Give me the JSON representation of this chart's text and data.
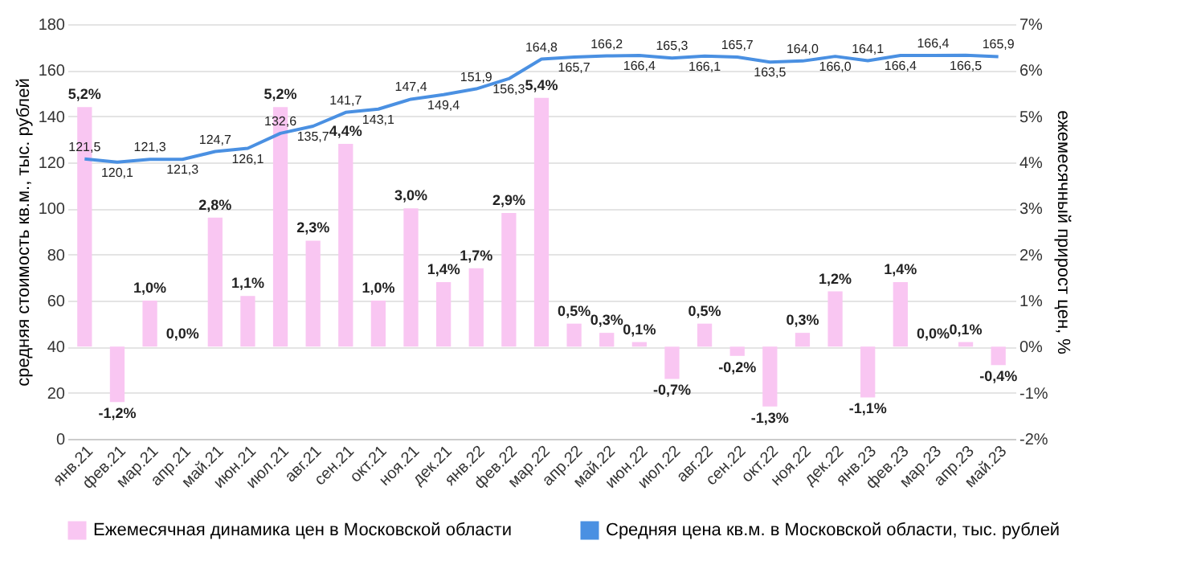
{
  "chart_data": {
    "type": "bar",
    "categories": [
      "янв.21",
      "фев.21",
      "мар.21",
      "апр.21",
      "май.21",
      "июн.21",
      "июл.21",
      "авг.21",
      "сен.21",
      "окт.21",
      "ноя.21",
      "дек.21",
      "янв.22",
      "фев.22",
      "мар.22",
      "апр.22",
      "май.22",
      "июн.22",
      "июл.22",
      "авг.22",
      "сен.22",
      "окт.22",
      "ноя.22",
      "дек.22",
      "янв.23",
      "фев.23",
      "мар.23",
      "апр.23",
      "май.23"
    ],
    "ylabel": "средняя стоимость кв.м., тыс. рублей",
    "y2label": "ежемесячный прирост цен, %",
    "ylim": [
      0,
      180
    ],
    "yticks": [
      0,
      20,
      40,
      60,
      80,
      100,
      120,
      140,
      160,
      180
    ],
    "y2lim": [
      -2,
      7
    ],
    "y2ticks": [
      {
        "value": -2,
        "label": "-2%"
      },
      {
        "value": -1,
        "label": "-1%"
      },
      {
        "value": 0,
        "label": "0%"
      },
      {
        "value": 1,
        "label": "1%"
      },
      {
        "value": 2,
        "label": "2%"
      },
      {
        "value": 3,
        "label": "3%"
      },
      {
        "value": 4,
        "label": "4%"
      },
      {
        "value": 5,
        "label": "5%"
      },
      {
        "value": 6,
        "label": "6%"
      },
      {
        "value": 7,
        "label": "7%"
      }
    ],
    "grid": "y",
    "legend": "bottom",
    "series": [
      {
        "name": "Ежемесячная динамика цен в Московской области",
        "axis": "y2",
        "color": "#f9c6f2",
        "values": [
          5.2,
          -1.2,
          1.0,
          0.0,
          2.8,
          1.1,
          5.2,
          2.3,
          4.4,
          1.0,
          3.0,
          1.4,
          1.7,
          2.9,
          5.4,
          0.5,
          0.3,
          0.1,
          -0.7,
          0.5,
          -0.2,
          -1.3,
          0.3,
          1.2,
          -1.1,
          1.4,
          0.0,
          0.1,
          -0.4
        ],
        "value_labels": [
          "5,2%",
          "-1,2%",
          "1,0%",
          "0,0%",
          "2,8%",
          "1,1%",
          "5,2%",
          "2,3%",
          "4,4%",
          "1,0%",
          "3,0%",
          "1,4%",
          "1,7%",
          "2,9%",
          "5,4%",
          "0,5%",
          "0,3%",
          "0,1%",
          "-0,7%",
          "0,5%",
          "-0,2%",
          "-1,3%",
          "0,3%",
          "1,2%",
          "-1,1%",
          "1,4%",
          "0,0%",
          "0,1%",
          "-0,4%"
        ]
      },
      {
        "name": "Средняя цена кв.м. в Московской области, тыс. рублей",
        "type": "line",
        "axis": "y",
        "color": "#4a90e2",
        "values": [
          121.5,
          120.1,
          121.3,
          121.3,
          124.7,
          126.1,
          132.6,
          135.7,
          141.7,
          143.1,
          147.4,
          149.4,
          151.9,
          156.3,
          164.8,
          165.7,
          166.2,
          166.4,
          165.3,
          166.1,
          165.7,
          163.5,
          164.0,
          166.0,
          164.1,
          166.4,
          166.4,
          166.5,
          165.9
        ],
        "value_labels": [
          "121,5",
          "120,1",
          "121,3",
          "121,3",
          "124,7",
          "126,1",
          "132,6",
          "135,7",
          "141,7",
          "143,1",
          "147,4",
          "149,4",
          "151,9",
          "156,3",
          "164,8",
          "165,7",
          "166,2",
          "166,4",
          "165,3",
          "166,1",
          "165,7",
          "163,5",
          "164,0",
          "166,0",
          "164,1",
          "166,4",
          "166,4",
          "166,5",
          "165,9"
        ]
      }
    ]
  }
}
